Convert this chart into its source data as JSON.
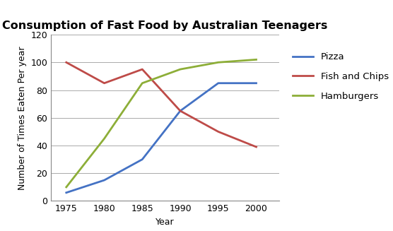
{
  "title": "Consumption of Fast Food by Australian Teenagers",
  "xlabel": "Year",
  "ylabel": "Number of Times Eaten Per year",
  "years": [
    1975,
    1980,
    1985,
    1990,
    1995,
    2000
  ],
  "pizza": [
    6,
    15,
    30,
    65,
    85,
    85
  ],
  "fish_and_chips": [
    100,
    85,
    95,
    65,
    50,
    39
  ],
  "hamburgers": [
    10,
    45,
    85,
    95,
    100,
    102
  ],
  "pizza_color": "#4472C4",
  "fish_color": "#BE4B48",
  "hamburgers_color": "#8DAE38",
  "ylim": [
    0,
    120
  ],
  "yticks": [
    0,
    20,
    40,
    60,
    80,
    100,
    120
  ],
  "xlim": [
    1973,
    2003
  ],
  "xticks": [
    1975,
    1980,
    1985,
    1990,
    1995,
    2000
  ],
  "linewidth": 2.0,
  "background_color": "#FFFFFF",
  "grid_color": "#AAAAAA",
  "title_fontsize": 11.5,
  "axis_label_fontsize": 9,
  "tick_fontsize": 9,
  "legend_fontsize": 9.5
}
